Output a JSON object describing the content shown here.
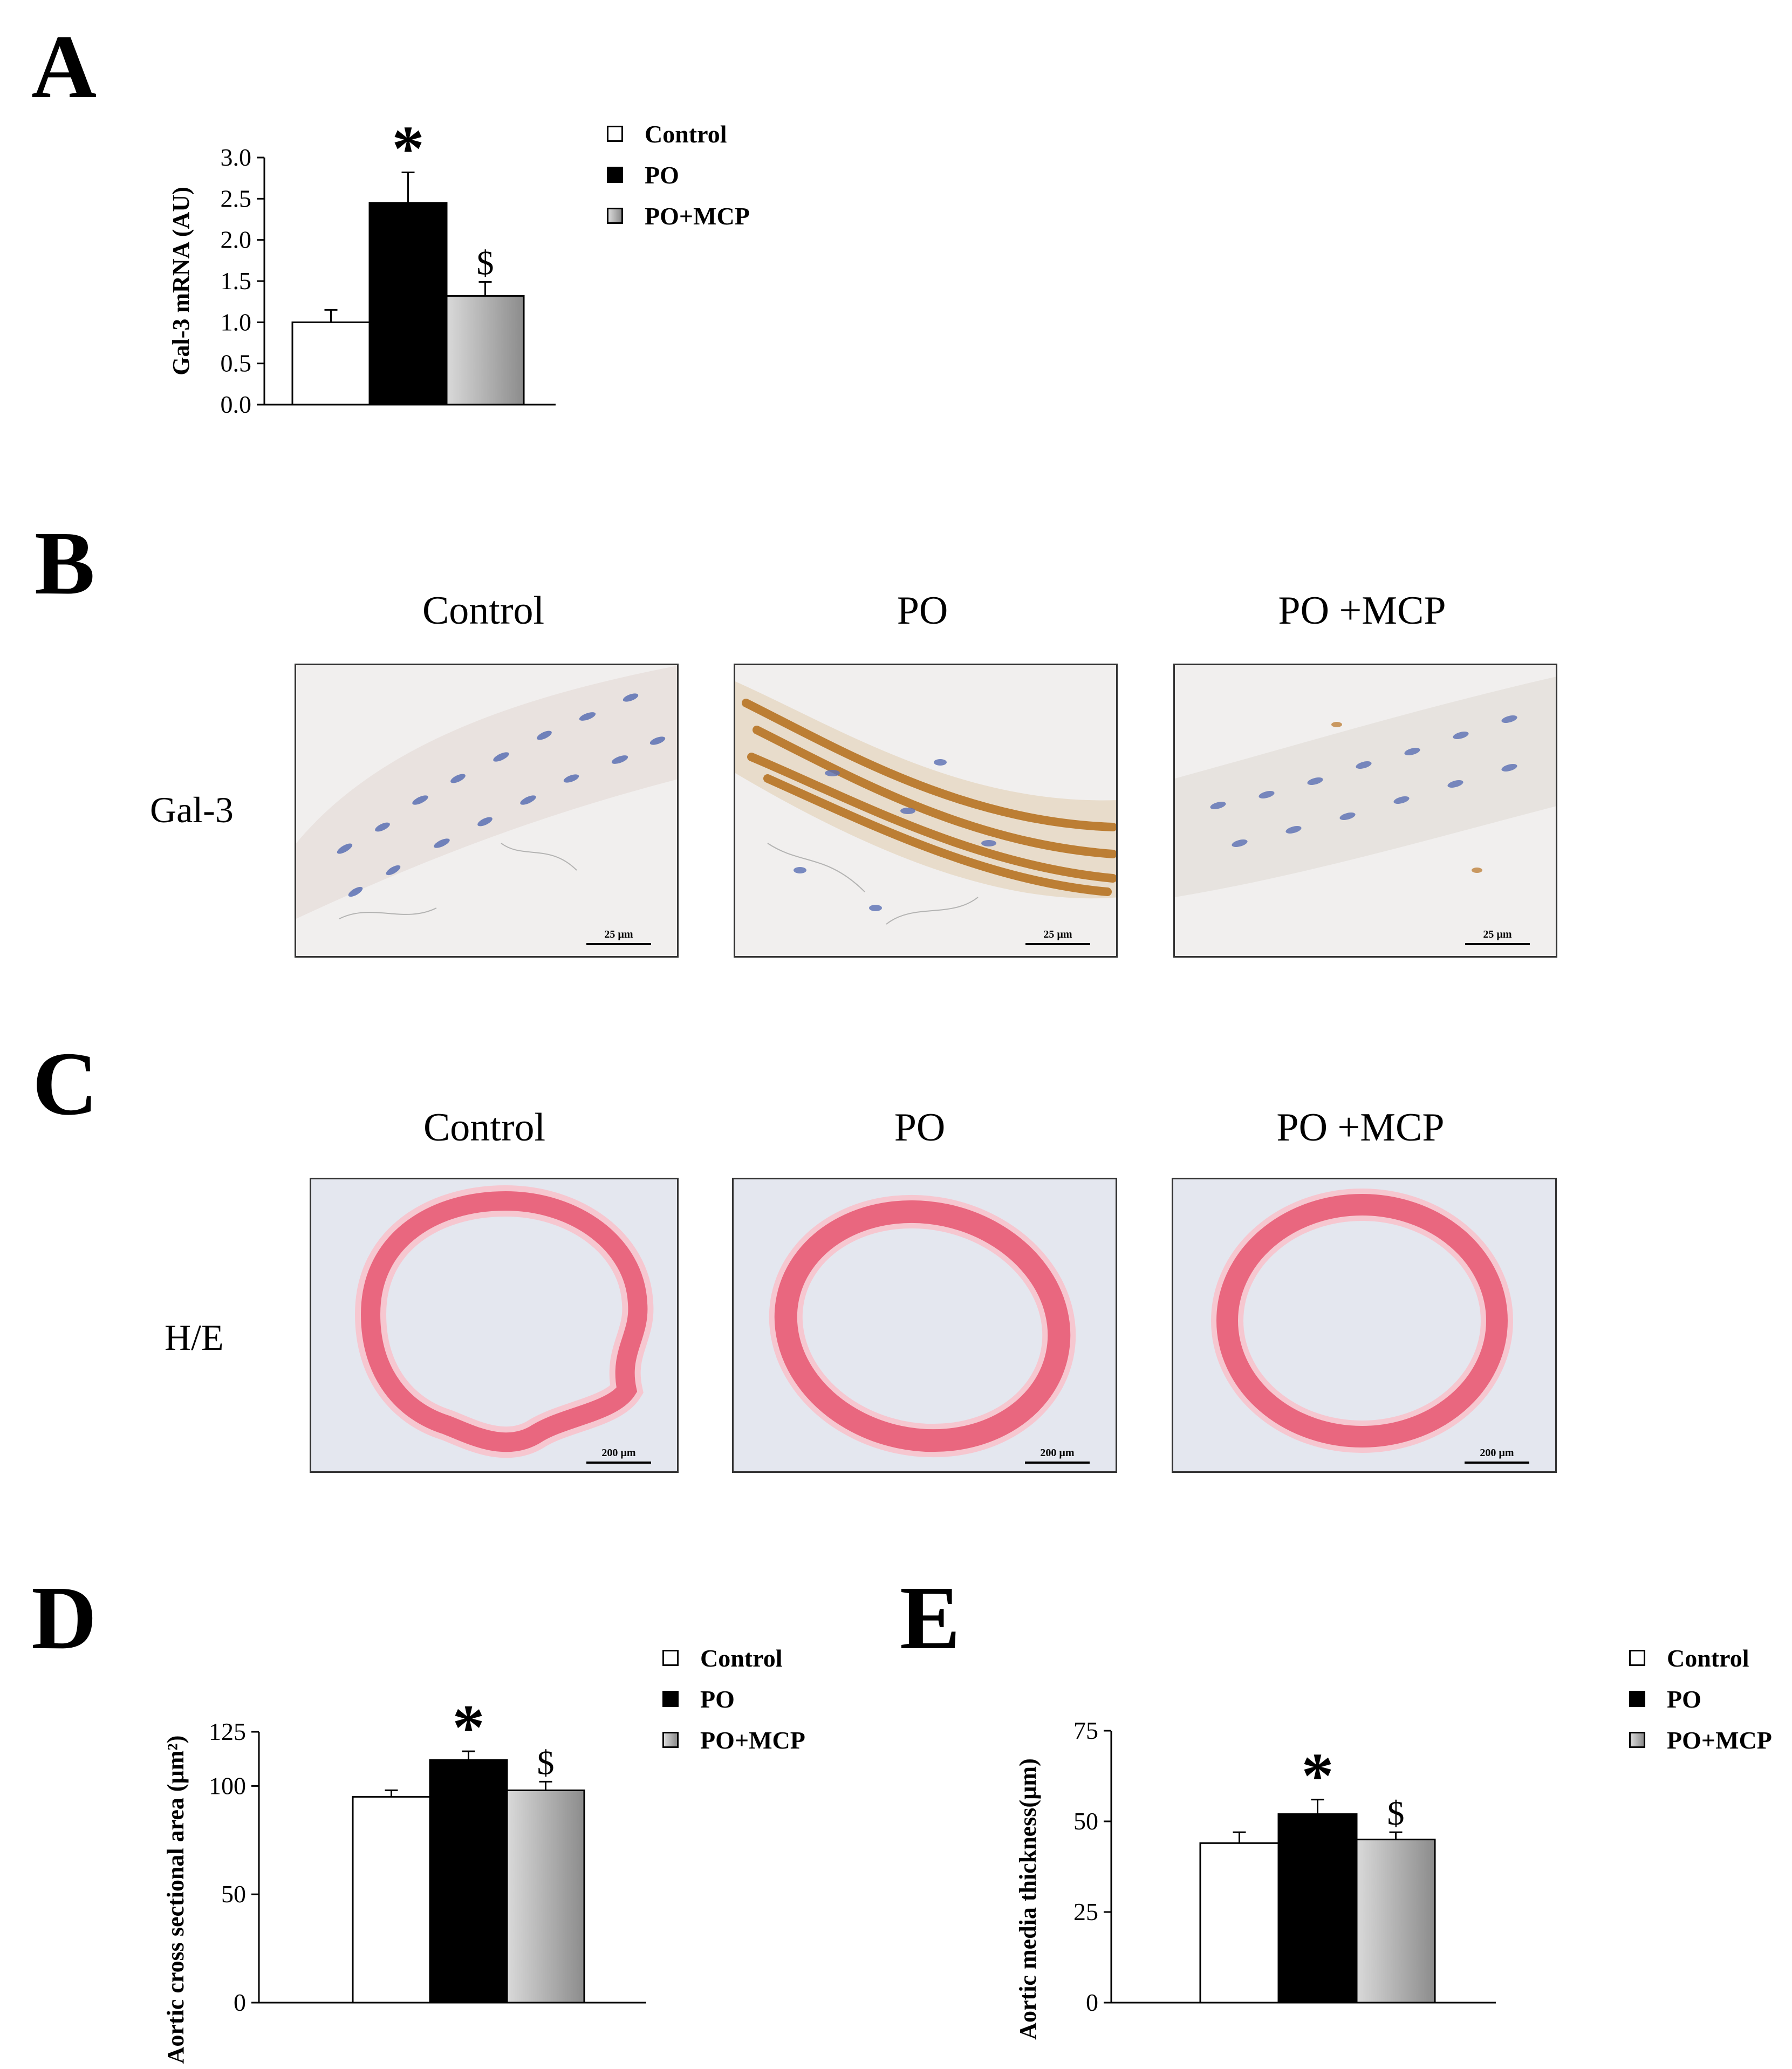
{
  "colors": {
    "control": "#ffffff",
    "po": "#000000",
    "po_mcp_light": "#d9d9d9",
    "po_mcp_dark": "#8c8c8c",
    "ihc_background": "#f1efee",
    "ihc_nucleus": "#5a6fb4",
    "ihc_brown": "#b87424",
    "he_background": "#e4e7ef",
    "he_pink": "#e9677f"
  },
  "legend": [
    "Control",
    "PO",
    "PO+MCP"
  ],
  "panels": {
    "a": "A",
    "b": "B",
    "c": "C",
    "d": "D",
    "e": "E"
  },
  "micrographs": {
    "columns": [
      "Control",
      "PO",
      "PO +MCP"
    ],
    "b_row_label": "Gal-3",
    "c_row_label": "H/E",
    "b_scale": "25 µm",
    "c_scale": "200 µm"
  },
  "chart_data": [
    {
      "panel": "A",
      "type": "bar",
      "categories": [
        "Control",
        "PO",
        "PO+MCP"
      ],
      "values": [
        1.0,
        2.45,
        1.32
      ],
      "errors": [
        0.15,
        0.37,
        0.17
      ],
      "annotations": [
        "",
        "*",
        "$"
      ],
      "ylabel": "Gal-3 mRNA (AU)",
      "ylim": [
        0,
        3.0
      ],
      "yticks": [
        0.0,
        0.5,
        1.0,
        1.5,
        2.0,
        2.5,
        3.0
      ],
      "ytick_labels": [
        "0.0",
        "0.5",
        "1.0",
        "1.5",
        "2.0",
        "2.5",
        "3.0"
      ]
    },
    {
      "panel": "D",
      "type": "bar",
      "categories": [
        "Control",
        "PO",
        "PO+MCP"
      ],
      "values": [
        95,
        112,
        98
      ],
      "errors": [
        3,
        4,
        4
      ],
      "annotations": [
        "",
        "*",
        "$"
      ],
      "ylabel": "Aortic cross sectional area (µm²)",
      "ylim": [
        0,
        125
      ],
      "yticks": [
        0,
        50,
        100,
        125
      ],
      "ytick_labels": [
        "0",
        "50",
        "100",
        "125"
      ]
    },
    {
      "panel": "E",
      "type": "bar",
      "categories": [
        "Control",
        "PO",
        "PO+MCP"
      ],
      "values": [
        44,
        52,
        45
      ],
      "errors": [
        3,
        4,
        2
      ],
      "annotations": [
        "",
        "*",
        "$"
      ],
      "ylabel": "Aortic media thickness(µm)",
      "ylim": [
        0,
        75
      ],
      "yticks": [
        0,
        25,
        50,
        75
      ],
      "ytick_labels": [
        "0",
        "25",
        "50",
        "75"
      ]
    }
  ]
}
